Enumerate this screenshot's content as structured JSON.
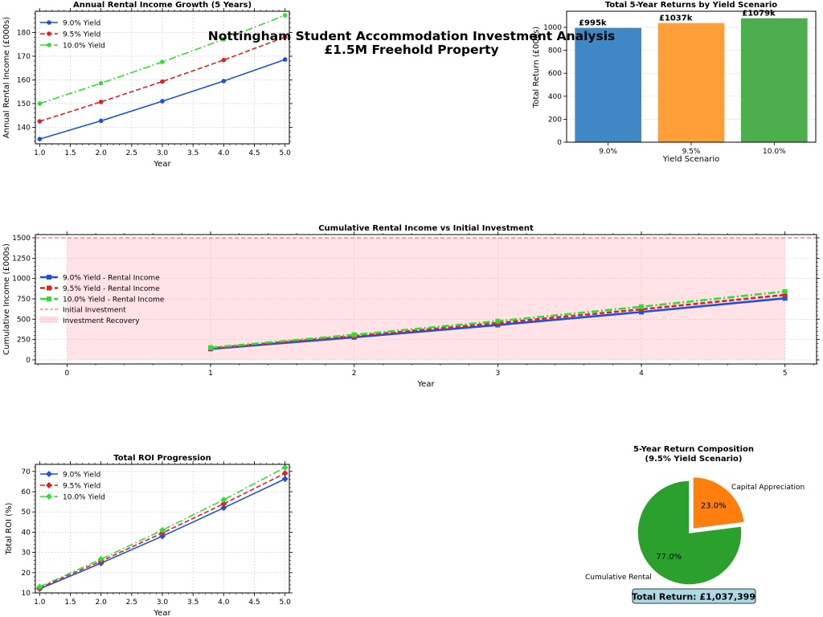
{
  "suptitle": {
    "line1": "Nottingham Student Accommodation Investment Analysis",
    "line2": "£1.5M Freehold Property"
  },
  "colors": {
    "blue": "#1f4fe0",
    "red": "#dd2222",
    "green": "#33dd33",
    "bar_blue": "#3f88c5",
    "bar_orange": "#ff9f3a",
    "bar_green": "#4cae4c",
    "pie_green": "#2ca02c",
    "pie_orange": "#ff7f0e",
    "recovery_fill": "#ffc0c8",
    "investment_line": "#e15a5a",
    "total_box": "#add8e6"
  },
  "chart_data": [
    {
      "id": "income",
      "type": "line",
      "title": "Annual Rental Income Growth (5 Years)",
      "xlabel": "Year",
      "ylabel": "Annual Rental Income (£000s)",
      "xlim": [
        0.93,
        5.07
      ],
      "ylim": [
        133,
        189
      ],
      "xticks": [
        "1.0",
        "1.5",
        "2.0",
        "2.5",
        "3.0",
        "3.5",
        "4.0",
        "4.5",
        "5.0"
      ],
      "yticks": [
        "140",
        "150",
        "160",
        "170",
        "180"
      ],
      "grid": true,
      "legend": "top-left",
      "x": [
        1,
        2,
        3,
        4,
        5
      ],
      "series": [
        {
          "name": "9.0% Yield",
          "values": [
            135,
            142.7,
            151.0,
            159.5,
            168.6
          ]
        },
        {
          "name": "9.5% Yield",
          "values": [
            142.5,
            150.7,
            159.3,
            168.4,
            178.1
          ]
        },
        {
          "name": "10.0% Yield",
          "values": [
            150,
            158.6,
            167.6,
            177.2,
            187.3
          ]
        }
      ]
    },
    {
      "id": "returns",
      "type": "bar",
      "title": "Total 5-Year Returns by Yield Scenario",
      "xlabel": "Yield Scenario",
      "ylabel": "Total Return (£000s)",
      "ylim": [
        0,
        1140
      ],
      "yticks": [
        "0",
        "200",
        "400",
        "600",
        "800",
        "1000"
      ],
      "categories": [
        "9.0%",
        "9.5%",
        "10.0%"
      ],
      "values": [
        995,
        1037,
        1079
      ],
      "data_labels": [
        "£995k",
        "£1037k",
        "£1079k"
      ],
      "grid": true
    },
    {
      "id": "cumulative",
      "type": "line",
      "title": "Cumulative Rental Income vs Initial Investment",
      "xlabel": "Year",
      "ylabel": "Cumulative Income (£000s)",
      "xlim": [
        -0.22,
        5.22
      ],
      "ylim": [
        -50,
        1540
      ],
      "xticks": [
        "0",
        "1",
        "2",
        "3",
        "4",
        "5"
      ],
      "yticks": [
        "0",
        "250",
        "500",
        "750",
        "1000",
        "1250",
        "1500"
      ],
      "grid": true,
      "legend": "left",
      "x": [
        1,
        2,
        3,
        4,
        5
      ],
      "series": [
        {
          "name": "9.0% Yield - Rental Income",
          "values": [
            135,
            277.7,
            428.7,
            588.2,
            756.8
          ]
        },
        {
          "name": "9.5% Yield - Rental Income",
          "values": [
            142.5,
            293.2,
            452.5,
            620.9,
            799.0
          ]
        },
        {
          "name": "10.0% Yield - Rental Income",
          "values": [
            150,
            308.6,
            476.2,
            653.4,
            840.7
          ]
        }
      ],
      "reference_line": {
        "name": "Initial Investment",
        "value": 1500
      },
      "shaded_region": {
        "name": "Investment Recovery",
        "x_range": [
          0,
          5
        ],
        "y_range": [
          0,
          1500
        ]
      }
    },
    {
      "id": "roi",
      "type": "line",
      "title": "Total ROI Progression",
      "xlabel": "Year",
      "ylabel": "Total ROI (%)",
      "xlim": [
        0.93,
        5.07
      ],
      "ylim": [
        10,
        73.5
      ],
      "xticks": [
        "1.0",
        "1.5",
        "2.0",
        "2.5",
        "3.0",
        "3.5",
        "4.0",
        "4.5",
        "5.0"
      ],
      "yticks": [
        "10",
        "20",
        "30",
        "40",
        "50",
        "60",
        "70"
      ],
      "grid": true,
      "legend": "top-left",
      "x": [
        1,
        2,
        3,
        4,
        5
      ],
      "series": [
        {
          "name": "9.0% Yield",
          "values": [
            12.0,
            24.7,
            38.0,
            52.0,
            66.3
          ]
        },
        {
          "name": "9.5% Yield",
          "values": [
            12.5,
            25.7,
            39.6,
            54.0,
            69.1
          ]
        },
        {
          "name": "10.0% Yield",
          "values": [
            13.0,
            26.7,
            41.0,
            56.0,
            72.0
          ]
        }
      ]
    },
    {
      "id": "composition",
      "type": "pie",
      "title": "5-Year Return Composition",
      "subtitle": "(9.5% Yield Scenario)",
      "slices": [
        {
          "name": "Capital Appreciation",
          "value": 23.0,
          "label": "23.0%"
        },
        {
          "name": "Cumulative Rental",
          "value": 77.0,
          "label": "77.0%"
        }
      ],
      "total_label": "Total Return: £1,037,399"
    }
  ]
}
